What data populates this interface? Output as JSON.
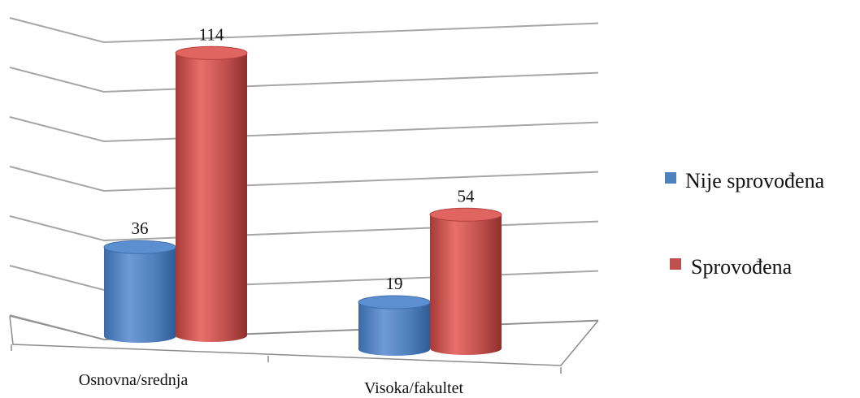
{
  "chart_data": {
    "type": "bar",
    "style": "3d-cylinder",
    "categories": [
      "Osnovna/srednja",
      "Visoka/fakultet"
    ],
    "series": [
      {
        "name": "Nije sprovođena",
        "values": [
          36,
          19
        ],
        "color": "#4f81bd"
      },
      {
        "name": "Sprovođena",
        "values": [
          114,
          54
        ],
        "color": "#c0504d"
      }
    ],
    "ylim": [
      0,
      120
    ],
    "y_gridlines": [
      0,
      20,
      40,
      60,
      80,
      100,
      120
    ],
    "grid": true,
    "legend_position": "right",
    "data_labels": true
  }
}
